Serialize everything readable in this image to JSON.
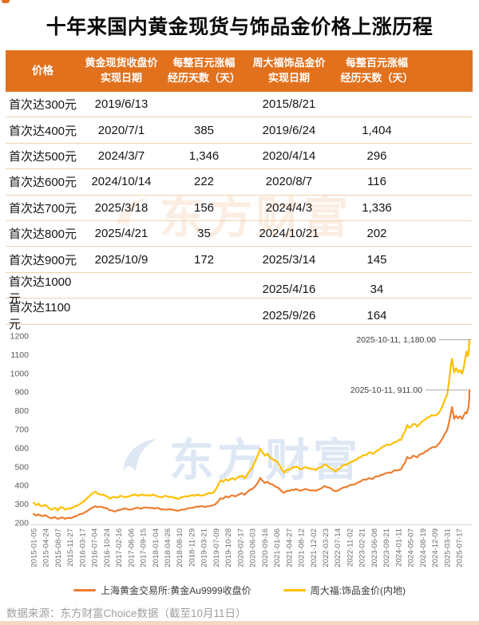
{
  "title": "十年来国内黄金现货与饰品金价格上涨历程",
  "table": {
    "header": {
      "col1": "价格",
      "col2_line1": "黄金现货收盘价",
      "col2_line2": "实现日期",
      "col3_line1": "每整百元涨幅",
      "col3_line2": "经历天数（天）",
      "col4_line1": "周大福饰品金价",
      "col4_line2": "实现日期",
      "col5_line1": "每整百元涨幅",
      "col5_line2": "经历天数（天）"
    },
    "rows": [
      {
        "price": "首次达300元",
        "spot_date": "2019/6/13",
        "spot_days": "",
        "ctf_date": "2015/8/21",
        "ctf_days": ""
      },
      {
        "price": "首次达400元",
        "spot_date": "2020/7/1",
        "spot_days": "385",
        "ctf_date": "2019/6/24",
        "ctf_days": "1,404"
      },
      {
        "price": "首次达500元",
        "spot_date": "2024/3/7",
        "spot_days": "1,346",
        "ctf_date": "2020/4/14",
        "ctf_days": "296"
      },
      {
        "price": "首次达600元",
        "spot_date": "2024/10/14",
        "spot_days": "222",
        "ctf_date": "2020/8/7",
        "ctf_days": "116"
      },
      {
        "price": "首次达700元",
        "spot_date": "2025/3/18",
        "spot_days": "156",
        "ctf_date": "2024/4/3",
        "ctf_days": "1,336"
      },
      {
        "price": "首次达800元",
        "spot_date": "2025/4/21",
        "spot_days": "35",
        "ctf_date": "2024/10/21",
        "ctf_days": "202"
      },
      {
        "price": "首次达900元",
        "spot_date": "2025/10/9",
        "spot_days": "172",
        "ctf_date": "2025/3/14",
        "ctf_days": "145"
      },
      {
        "price": "首次达1000元",
        "spot_date": "",
        "spot_days": "",
        "ctf_date": "2025/4/16",
        "ctf_days": "34"
      },
      {
        "price": "首次达1100元",
        "spot_date": "",
        "spot_days": "",
        "ctf_date": "2025/9/26",
        "ctf_days": "164"
      }
    ]
  },
  "chart_data": {
    "type": "line",
    "ylim": [
      200,
      1200
    ],
    "yticks": [
      200,
      300,
      400,
      500,
      600,
      700,
      800,
      900,
      1000,
      1100,
      1200
    ],
    "grid": false,
    "legend_position": "bottom",
    "xticklabels": [
      "2015-01-05",
      "2015-04-24",
      "2015-08-07",
      "2015-11-27",
      "2016-03-17",
      "2016-07-04",
      "2016-10-24",
      "2017-02-16",
      "2017-06-06",
      "2017-09-15",
      "2018-01-04",
      "2018-04-26",
      "2018-08-10",
      "2018-11-29",
      "2019-03-21",
      "2019-07-09",
      "2019-10-28",
      "2020-02-17",
      "2020-06-03",
      "2020-09-16",
      "2021-01-06",
      "2021-04-27",
      "2021-08-12",
      "2021-12-02",
      "2022-03-23",
      "2022-07-14",
      "2022-11-02",
      "2023-02-21",
      "2023-06-08",
      "2023-09-21",
      "2024-01-11",
      "2024-05-07",
      "2024-08-19",
      "2024-12-09",
      "2025-03-31",
      "2025-07-17"
    ],
    "annotations": [
      {
        "text": "2025-10-11, 1,180.00",
        "value": 1180
      },
      {
        "text": "2025-10-11, 911.00",
        "value": 911
      }
    ],
    "series": [
      {
        "name": "上海黄金交易所:黄金Au9999收盘价",
        "color": "#ED7D31",
        "points": [
          [
            0,
            248
          ],
          [
            0.07,
            239
          ],
          [
            0.12,
            245
          ],
          [
            0.2,
            237
          ],
          [
            0.28,
            242
          ],
          [
            0.38,
            229
          ],
          [
            0.45,
            224
          ],
          [
            0.52,
            231
          ],
          [
            0.6,
            221
          ],
          [
            0.68,
            229
          ],
          [
            0.78,
            221
          ],
          [
            0.88,
            226
          ],
          [
            0.98,
            231
          ],
          [
            1.08,
            238
          ],
          [
            1.18,
            248
          ],
          [
            1.28,
            258
          ],
          [
            1.38,
            272
          ],
          [
            1.48,
            284
          ],
          [
            1.53,
            289
          ],
          [
            1.58,
            283
          ],
          [
            1.68,
            285
          ],
          [
            1.78,
            279
          ],
          [
            1.88,
            267
          ],
          [
            1.98,
            262
          ],
          [
            2.08,
            267
          ],
          [
            2.18,
            272
          ],
          [
            2.28,
            277
          ],
          [
            2.38,
            271
          ],
          [
            2.48,
            276
          ],
          [
            2.58,
            281
          ],
          [
            2.68,
            277
          ],
          [
            2.78,
            282
          ],
          [
            2.88,
            279
          ],
          [
            2.98,
            276
          ],
          [
            3.08,
            279
          ],
          [
            3.18,
            273
          ],
          [
            3.28,
            270
          ],
          [
            3.38,
            273
          ],
          [
            3.48,
            269
          ],
          [
            3.58,
            265
          ],
          [
            3.68,
            271
          ],
          [
            3.78,
            275
          ],
          [
            3.88,
            279
          ],
          [
            3.98,
            283
          ],
          [
            4.08,
            286
          ],
          [
            4.18,
            289
          ],
          [
            4.28,
            287
          ],
          [
            4.38,
            291
          ],
          [
            4.48,
            297
          ],
          [
            4.55,
            312
          ],
          [
            4.62,
            332
          ],
          [
            4.68,
            328
          ],
          [
            4.75,
            342
          ],
          [
            4.82,
            336
          ],
          [
            4.9,
            346
          ],
          [
            4.98,
            341
          ],
          [
            5.08,
            352
          ],
          [
            5.15,
            359
          ],
          [
            5.22,
            350
          ],
          [
            5.3,
            368
          ],
          [
            5.4,
            380
          ],
          [
            5.48,
            396
          ],
          [
            5.55,
            418
          ],
          [
            5.6,
            441
          ],
          [
            5.65,
            426
          ],
          [
            5.72,
            413
          ],
          [
            5.78,
            420
          ],
          [
            5.85,
            407
          ],
          [
            5.95,
            397
          ],
          [
            6.05,
            387
          ],
          [
            6.12,
            372
          ],
          [
            6.2,
            362
          ],
          [
            6.28,
            371
          ],
          [
            6.38,
            377
          ],
          [
            6.48,
            381
          ],
          [
            6.58,
            373
          ],
          [
            6.68,
            379
          ],
          [
            6.78,
            377
          ],
          [
            6.88,
            373
          ],
          [
            6.98,
            371
          ],
          [
            7.08,
            381
          ],
          [
            7.18,
            397
          ],
          [
            7.28,
            389
          ],
          [
            7.38,
            377
          ],
          [
            7.48,
            371
          ],
          [
            7.58,
            381
          ],
          [
            7.68,
            391
          ],
          [
            7.78,
            397
          ],
          [
            7.88,
            403
          ],
          [
            7.98,
            411
          ],
          [
            8.08,
            421
          ],
          [
            8.18,
            431
          ],
          [
            8.28,
            439
          ],
          [
            8.38,
            435
          ],
          [
            8.48,
            449
          ],
          [
            8.58,
            457
          ],
          [
            8.68,
            464
          ],
          [
            8.78,
            469
          ],
          [
            8.88,
            475
          ],
          [
            8.98,
            480
          ],
          [
            9.08,
            487
          ],
          [
            9.18,
            522
          ],
          [
            9.23,
            553
          ],
          [
            9.28,
            545
          ],
          [
            9.38,
            560
          ],
          [
            9.48,
            550
          ],
          [
            9.58,
            570
          ],
          [
            9.68,
            583
          ],
          [
            9.78,
            596
          ],
          [
            9.88,
            606
          ],
          [
            9.98,
            616
          ],
          [
            10.04,
            630
          ],
          [
            10.1,
            650
          ],
          [
            10.16,
            676
          ],
          [
            10.22,
            698
          ],
          [
            10.27,
            742
          ],
          [
            10.31,
            788
          ],
          [
            10.34,
            820
          ],
          [
            10.39,
            757
          ],
          [
            10.44,
            773
          ],
          [
            10.49,
            760
          ],
          [
            10.54,
            770
          ],
          [
            10.59,
            756
          ],
          [
            10.63,
            775
          ],
          [
            10.67,
            792
          ],
          [
            10.7,
            786
          ],
          [
            10.745,
            818
          ],
          [
            10.765,
            858
          ],
          [
            10.77,
            911
          ]
        ]
      },
      {
        "name": "周大福:饰品金价(内地)",
        "color": "#FFC000",
        "points": [
          [
            0,
            308
          ],
          [
            0.07,
            295
          ],
          [
            0.12,
            303
          ],
          [
            0.2,
            290
          ],
          [
            0.28,
            296
          ],
          [
            0.38,
            278
          ],
          [
            0.45,
            270
          ],
          [
            0.52,
            280
          ],
          [
            0.6,
            266
          ],
          [
            0.68,
            284
          ],
          [
            0.78,
            270
          ],
          [
            0.88,
            278
          ],
          [
            0.98,
            282
          ],
          [
            1.08,
            292
          ],
          [
            1.18,
            306
          ],
          [
            1.28,
            322
          ],
          [
            1.38,
            342
          ],
          [
            1.48,
            360
          ],
          [
            1.53,
            368
          ],
          [
            1.58,
            356
          ],
          [
            1.68,
            350
          ],
          [
            1.78,
            344
          ],
          [
            1.88,
            330
          ],
          [
            1.98,
            340
          ],
          [
            2.08,
            335
          ],
          [
            2.18,
            344
          ],
          [
            2.28,
            337
          ],
          [
            2.38,
            342
          ],
          [
            2.48,
            350
          ],
          [
            2.58,
            344
          ],
          [
            2.68,
            352
          ],
          [
            2.78,
            347
          ],
          [
            2.88,
            344
          ],
          [
            2.98,
            350
          ],
          [
            3.08,
            341
          ],
          [
            3.18,
            337
          ],
          [
            3.28,
            344
          ],
          [
            3.38,
            339
          ],
          [
            3.48,
            333
          ],
          [
            3.58,
            327
          ],
          [
            3.68,
            337
          ],
          [
            3.78,
            342
          ],
          [
            3.88,
            347
          ],
          [
            3.98,
            344
          ],
          [
            4.08,
            350
          ],
          [
            4.18,
            347
          ],
          [
            4.28,
            354
          ],
          [
            4.38,
            358
          ],
          [
            4.48,
            370
          ],
          [
            4.55,
            398
          ],
          [
            4.62,
            428
          ],
          [
            4.68,
            420
          ],
          [
            4.75,
            433
          ],
          [
            4.82,
            425
          ],
          [
            4.9,
            437
          ],
          [
            4.98,
            430
          ],
          [
            5.08,
            446
          ],
          [
            5.15,
            452
          ],
          [
            5.22,
            438
          ],
          [
            5.3,
            466
          ],
          [
            5.4,
            492
          ],
          [
            5.48,
            530
          ],
          [
            5.55,
            568
          ],
          [
            5.6,
            597
          ],
          [
            5.65,
            578
          ],
          [
            5.72,
            560
          ],
          [
            5.78,
            570
          ],
          [
            5.85,
            548
          ],
          [
            5.95,
            534
          ],
          [
            6.05,
            518
          ],
          [
            6.12,
            490
          ],
          [
            6.2,
            468
          ],
          [
            6.28,
            484
          ],
          [
            6.38,
            494
          ],
          [
            6.48,
            500
          ],
          [
            6.58,
            488
          ],
          [
            6.68,
            496
          ],
          [
            6.78,
            491
          ],
          [
            6.88,
            486
          ],
          [
            6.98,
            482
          ],
          [
            7.08,
            496
          ],
          [
            7.18,
            512
          ],
          [
            7.28,
            500
          ],
          [
            7.38,
            487
          ],
          [
            7.48,
            478
          ],
          [
            7.58,
            494
          ],
          [
            7.68,
            510
          ],
          [
            7.78,
            519
          ],
          [
            7.88,
            527
          ],
          [
            7.98,
            537
          ],
          [
            8.08,
            551
          ],
          [
            8.18,
            563
          ],
          [
            8.28,
            575
          ],
          [
            8.38,
            569
          ],
          [
            8.48,
            586
          ],
          [
            8.58,
            599
          ],
          [
            8.68,
            611
          ],
          [
            8.78,
            617
          ],
          [
            8.88,
            627
          ],
          [
            8.98,
            635
          ],
          [
            9.08,
            644
          ],
          [
            9.18,
            690
          ],
          [
            9.23,
            724
          ],
          [
            9.28,
            710
          ],
          [
            9.38,
            729
          ],
          [
            9.48,
            716
          ],
          [
            9.58,
            740
          ],
          [
            9.68,
            753
          ],
          [
            9.78,
            766
          ],
          [
            9.88,
            774
          ],
          [
            9.98,
            781
          ],
          [
            10.04,
            798
          ],
          [
            10.1,
            824
          ],
          [
            10.16,
            856
          ],
          [
            10.22,
            888
          ],
          [
            10.27,
            965
          ],
          [
            10.31,
            1042
          ],
          [
            10.34,
            1078
          ],
          [
            10.39,
            1005
          ],
          [
            10.44,
            1028
          ],
          [
            10.49,
            1006
          ],
          [
            10.54,
            1018
          ],
          [
            10.59,
            998
          ],
          [
            10.63,
            1032
          ],
          [
            10.67,
            1088
          ],
          [
            10.7,
            1118
          ],
          [
            10.72,
            1092
          ],
          [
            10.745,
            1102
          ],
          [
            10.77,
            1180
          ]
        ]
      }
    ]
  },
  "legend": [
    {
      "label": "上海黄金交易所:黄金Au9999收盘价",
      "color": "#ED7D31"
    },
    {
      "label": "周大福:饰品金价(内地)",
      "color": "#FFC000"
    }
  ],
  "watermark": {
    "text": "东方财富"
  },
  "footer": {
    "source": "数据来源：东方财富Choice数据（截至10月11日）"
  },
  "colors": {
    "header_bg": "#E2711D",
    "row_divider": "#F2D3AE",
    "spot_line": "#ED7D31",
    "jewelry_line": "#FFC000",
    "axis_text": "#595959",
    "annotation_text": "#3c3c3c",
    "bottom_strip": "#F3D9C3"
  }
}
